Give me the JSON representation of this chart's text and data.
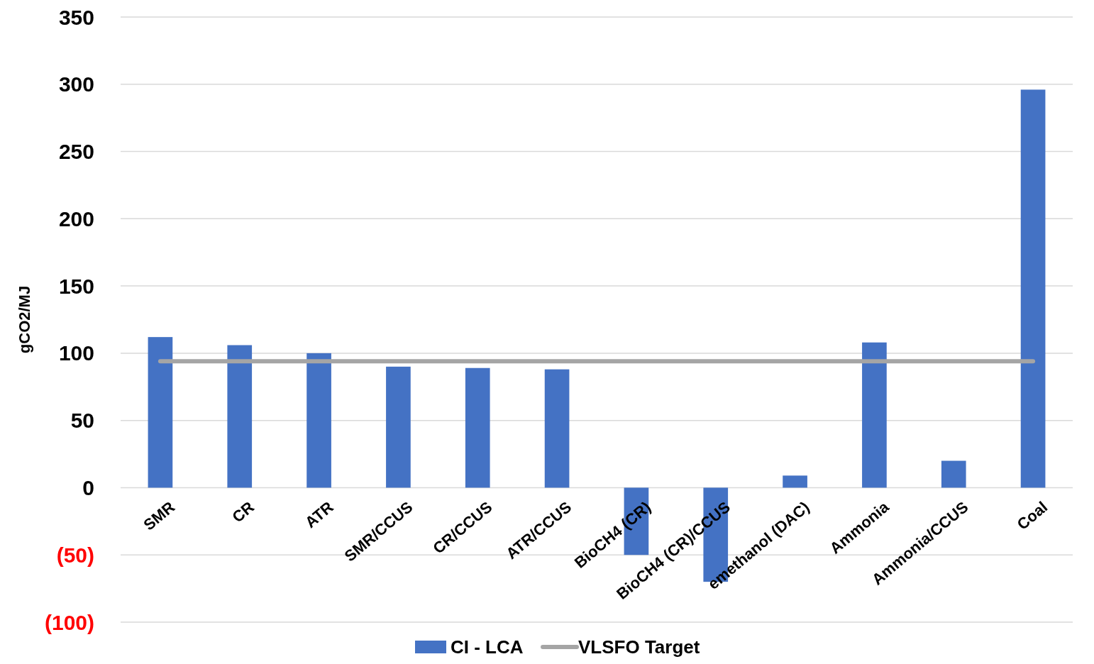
{
  "chart_data": {
    "type": "bar",
    "ylabel": "gCO2/MJ",
    "categories": [
      "SMR",
      "CR",
      "ATR",
      "SMR/CCUS",
      "CR/CCUS",
      "ATR/CCUS",
      "BioCH4 (CR)",
      "BioCH4 (CR)/CCUS",
      "emethanol (DAC)",
      "Ammonia",
      "Ammonia/CCUS",
      "Coal"
    ],
    "series": [
      {
        "name": "CI - LCA",
        "color": "#4472c4",
        "values": [
          112,
          106,
          100,
          90,
          89,
          88,
          -50,
          -70,
          9,
          108,
          20,
          296
        ]
      },
      {
        "name": "VLSFO Target",
        "type": "line",
        "color": "#a5a5a5",
        "values": [
          94,
          94,
          94,
          94,
          94,
          94,
          94,
          94,
          94,
          94,
          94,
          94
        ]
      }
    ],
    "ylim": [
      -100,
      350
    ],
    "yticks": [
      {
        "value": -100,
        "label": "(100)"
      },
      {
        "value": -50,
        "label": "(50)"
      },
      0,
      50,
      100,
      150,
      200,
      250,
      300,
      350
    ],
    "grid": "y",
    "legend": "bottom"
  }
}
